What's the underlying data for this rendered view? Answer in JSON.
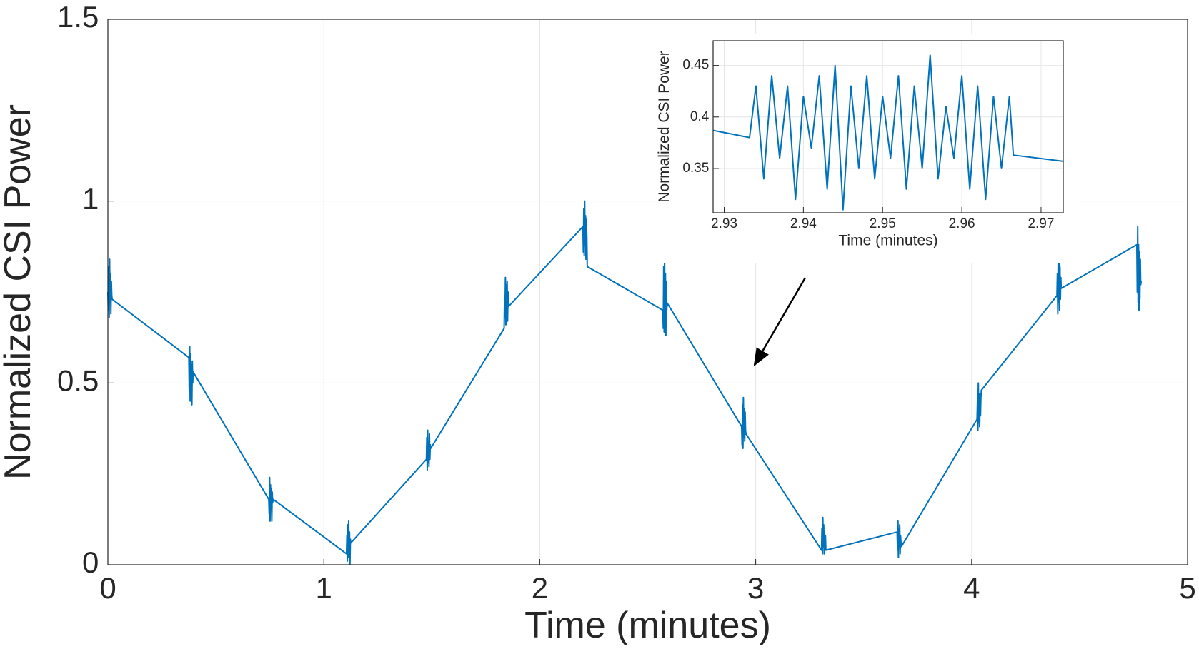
{
  "chart_data": [
    {
      "type": "line",
      "xlabel": "Time (minutes)",
      "ylabel": "Normalized CSI Power",
      "color": "#0072bd",
      "grid": true,
      "xlim": [
        0,
        5
      ],
      "ylim": [
        0,
        1.5
      ],
      "xticks": [
        0,
        1,
        2,
        3,
        4,
        5
      ],
      "yticks": [
        0,
        0.5,
        1,
        1.5
      ],
      "x": [
        0,
        0.002,
        0.004,
        0.006,
        0.008,
        0.01,
        0.012,
        0.014,
        0.016,
        0.018,
        0.02,
        0.375,
        0.377,
        0.379,
        0.381,
        0.383,
        0.385,
        0.387,
        0.389,
        0.391,
        0.393,
        0.395,
        0.745,
        0.747,
        0.749,
        0.751,
        0.753,
        0.755,
        0.757,
        0.759,
        0.761,
        0.763,
        0.765,
        1.105,
        1.107,
        1.109,
        1.111,
        1.113,
        1.115,
        1.117,
        1.119,
        1.121,
        1.123,
        1.125,
        1.475,
        1.477,
        1.479,
        1.481,
        1.483,
        1.485,
        1.487,
        1.489,
        1.491,
        1.493,
        1.495,
        1.835,
        1.837,
        1.839,
        1.841,
        1.843,
        1.845,
        1.847,
        1.849,
        1.851,
        1.853,
        1.855,
        2.2,
        2.202,
        2.204,
        2.206,
        2.208,
        2.21,
        2.212,
        2.214,
        2.216,
        2.218,
        2.22,
        2.57,
        2.572,
        2.574,
        2.576,
        2.578,
        2.58,
        2.582,
        2.584,
        2.586,
        2.588,
        2.59,
        2.935,
        2.937,
        2.939,
        2.941,
        2.943,
        2.945,
        2.947,
        2.949,
        2.951,
        2.953,
        2.955,
        3.305,
        3.307,
        3.309,
        3.311,
        3.313,
        3.315,
        3.317,
        3.319,
        3.321,
        3.323,
        3.325,
        3.655,
        3.657,
        3.659,
        3.661,
        3.663,
        3.665,
        3.667,
        3.669,
        3.671,
        3.673,
        3.675,
        4.025,
        4.027,
        4.029,
        4.031,
        4.033,
        4.035,
        4.037,
        4.039,
        4.041,
        4.043,
        4.045,
        4.395,
        4.397,
        4.399,
        4.401,
        4.403,
        4.405,
        4.407,
        4.409,
        4.411,
        4.413,
        4.415,
        4.765,
        4.767,
        4.769,
        4.771,
        4.773,
        4.775,
        4.777,
        4.779,
        4.781,
        4.783,
        4.785
      ],
      "values": [
        0.75,
        0.7,
        0.82,
        0.68,
        0.84,
        0.72,
        0.8,
        0.69,
        0.78,
        0.74,
        0.73,
        0.57,
        0.48,
        0.6,
        0.45,
        0.58,
        0.47,
        0.55,
        0.44,
        0.56,
        0.5,
        0.53,
        0.18,
        0.14,
        0.24,
        0.12,
        0.22,
        0.15,
        0.21,
        0.12,
        0.2,
        0.17,
        0.18,
        0.03,
        0.08,
        0.01,
        0.11,
        0.02,
        0.12,
        0.04,
        0.09,
        0.0,
        0.07,
        0.06,
        0.29,
        0.35,
        0.26,
        0.37,
        0.28,
        0.34,
        0.27,
        0.36,
        0.29,
        0.33,
        0.32,
        0.65,
        0.74,
        0.68,
        0.79,
        0.66,
        0.77,
        0.69,
        0.78,
        0.67,
        0.75,
        0.71,
        0.93,
        0.86,
        0.98,
        0.85,
        1.0,
        0.88,
        0.96,
        0.84,
        0.95,
        0.9,
        0.82,
        0.7,
        0.65,
        0.82,
        0.64,
        0.85,
        0.68,
        0.8,
        0.63,
        0.78,
        0.7,
        0.72,
        0.38,
        0.33,
        0.44,
        0.32,
        0.46,
        0.35,
        0.43,
        0.34,
        0.42,
        0.37,
        0.36,
        0.04,
        0.1,
        0.03,
        0.13,
        0.05,
        0.11,
        0.03,
        0.09,
        0.06,
        0.08,
        0.04,
        0.09,
        0.04,
        0.12,
        0.02,
        0.1,
        0.05,
        0.11,
        0.03,
        0.08,
        0.06,
        0.05,
        0.4,
        0.45,
        0.37,
        0.5,
        0.39,
        0.47,
        0.38,
        0.44,
        0.41,
        0.46,
        0.48,
        0.74,
        0.8,
        0.69,
        0.85,
        0.72,
        0.83,
        0.7,
        0.82,
        0.73,
        0.79,
        0.76,
        0.88,
        0.75,
        0.93,
        0.72,
        0.88,
        0.7,
        0.86,
        0.73,
        0.84,
        0.77,
        0.78
      ]
    },
    {
      "type": "line",
      "xlabel": "Time (minutes)",
      "ylabel": "Normalized CSI Power",
      "color": "#0072bd",
      "grid": true,
      "xlim": [
        2.9286,
        2.9728
      ],
      "ylim": [
        0.307,
        0.474
      ],
      "xticks": [
        2.93,
        2.94,
        2.95,
        2.96,
        2.97
      ],
      "yticks": [
        0.35,
        0.4,
        0.45
      ],
      "x": [
        2.9286,
        2.9332,
        2.934,
        2.935,
        2.936,
        2.937,
        2.938,
        2.939,
        2.94,
        2.941,
        2.942,
        2.943,
        2.944,
        2.945,
        2.946,
        2.947,
        2.948,
        2.949,
        2.95,
        2.951,
        2.952,
        2.953,
        2.954,
        2.955,
        2.956,
        2.957,
        2.958,
        2.959,
        2.96,
        2.961,
        2.962,
        2.963,
        2.964,
        2.965,
        2.966,
        2.9665,
        2.9728
      ],
      "values": [
        0.387,
        0.38,
        0.43,
        0.34,
        0.44,
        0.36,
        0.43,
        0.32,
        0.42,
        0.37,
        0.44,
        0.33,
        0.45,
        0.31,
        0.43,
        0.35,
        0.44,
        0.34,
        0.42,
        0.36,
        0.44,
        0.33,
        0.43,
        0.35,
        0.46,
        0.34,
        0.41,
        0.36,
        0.44,
        0.33,
        0.43,
        0.32,
        0.42,
        0.35,
        0.42,
        0.363,
        0.357
      ]
    }
  ]
}
